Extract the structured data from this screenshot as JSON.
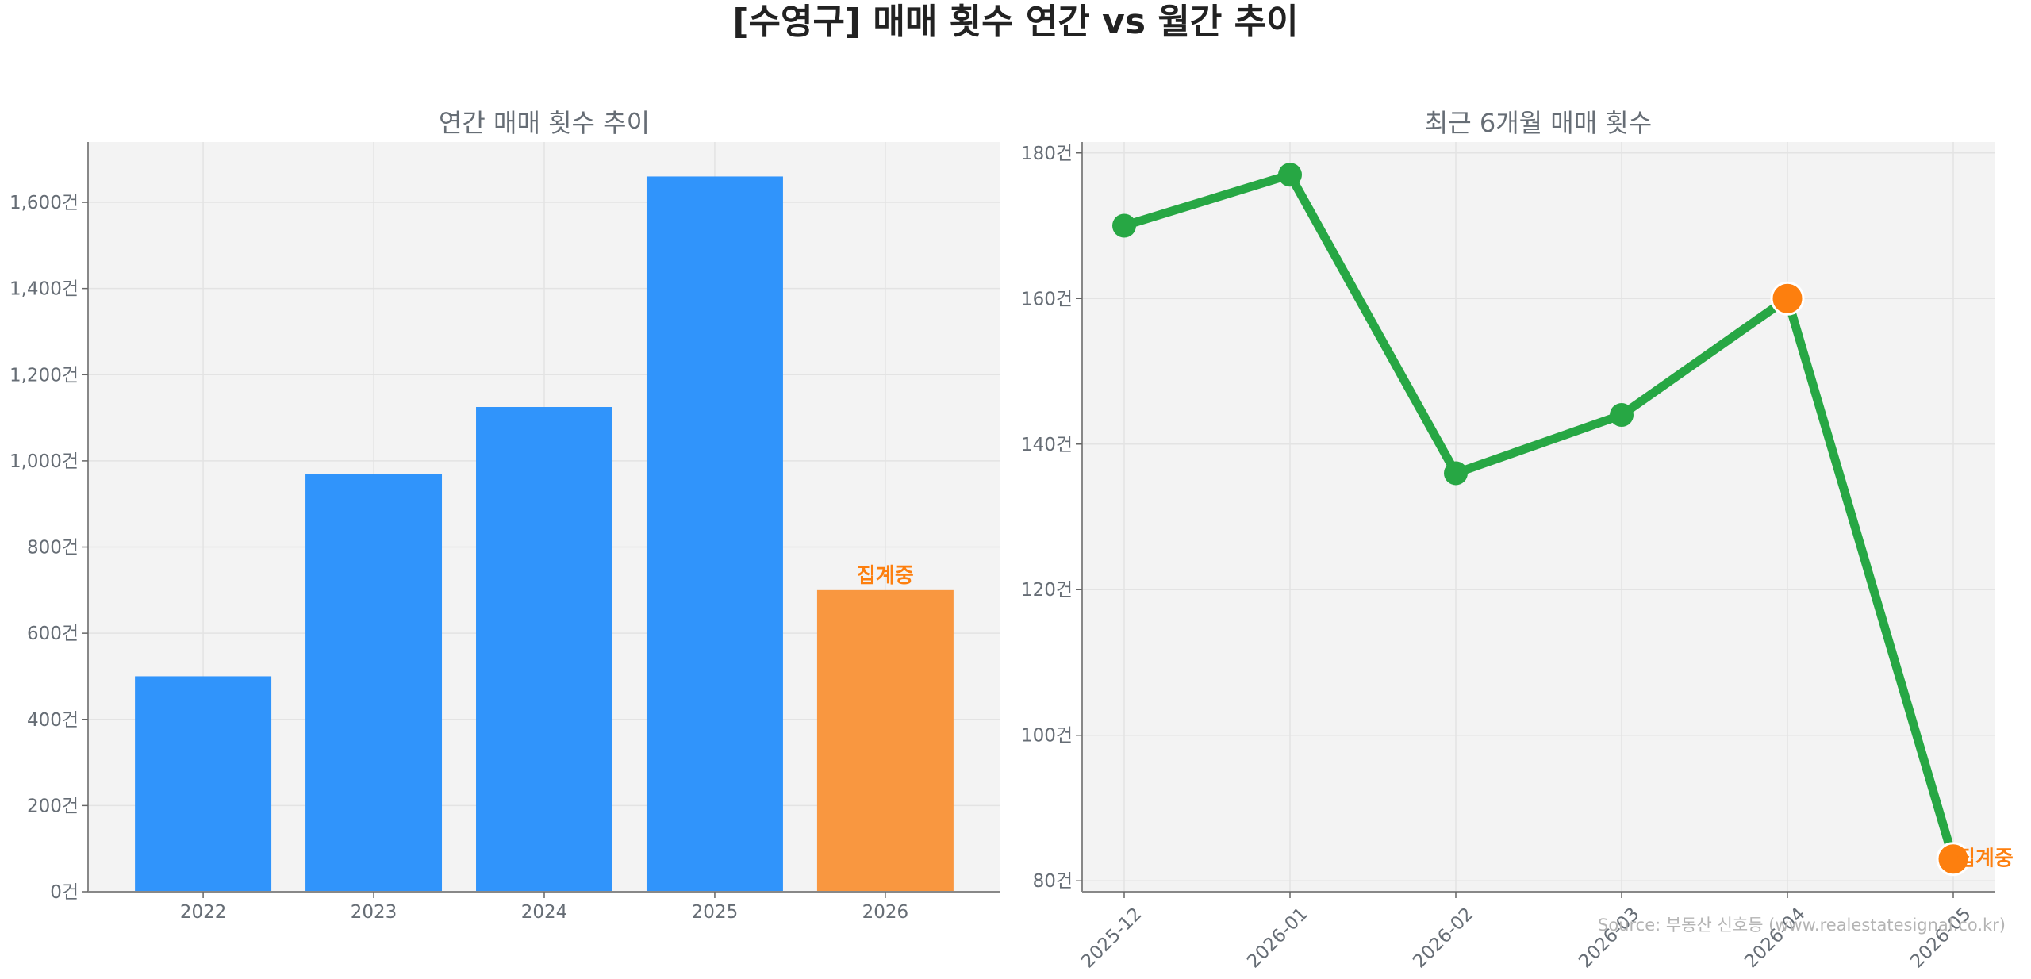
{
  "title": "[수영구] 매매 횟수 연간 vs 월간 추이",
  "source": "Source: 부동산 신호등 (www.realestatesignal.co.kr)",
  "colors": {
    "bar": "#3094fb",
    "bar_pending": "#f99740",
    "line": "#27a744",
    "pending_marker": "#fd7f0e",
    "pending_text": "#fd7f0e",
    "axes_bg": "#f3f3f3",
    "grid": "#e3e3e3"
  },
  "chart_data": [
    {
      "type": "bar",
      "title": "연간 매매 횟수 추이",
      "categories": [
        "2022",
        "2023",
        "2024",
        "2025",
        "2026"
      ],
      "values": [
        500,
        970,
        1125,
        1660,
        700
      ],
      "pending_index": 4,
      "pending_label": "집계중",
      "ylim": [
        0,
        1740
      ],
      "yticks": [
        0,
        200,
        400,
        600,
        800,
        1000,
        1200,
        1400,
        1600
      ],
      "ytick_labels": [
        "0건",
        "200건",
        "400건",
        "600건",
        "800건",
        "1,000건",
        "1,200건",
        "1,400건",
        "1,600건"
      ],
      "grid": true
    },
    {
      "type": "line",
      "title": "최근 6개월 매매 횟수",
      "categories": [
        "2025-12",
        "2026-01",
        "2026-02",
        "2026-03",
        "2026-04",
        "2026-05"
      ],
      "values": [
        170,
        177,
        136,
        144,
        160,
        83
      ],
      "highlight_indices": [
        4,
        5
      ],
      "pending_index": 5,
      "pending_label": "집계중",
      "ylim": [
        78.5,
        181.5
      ],
      "yticks": [
        80,
        100,
        120,
        140,
        160,
        180
      ],
      "ytick_labels": [
        "80건",
        "100건",
        "120건",
        "140건",
        "160건",
        "180건"
      ],
      "grid": true
    }
  ]
}
